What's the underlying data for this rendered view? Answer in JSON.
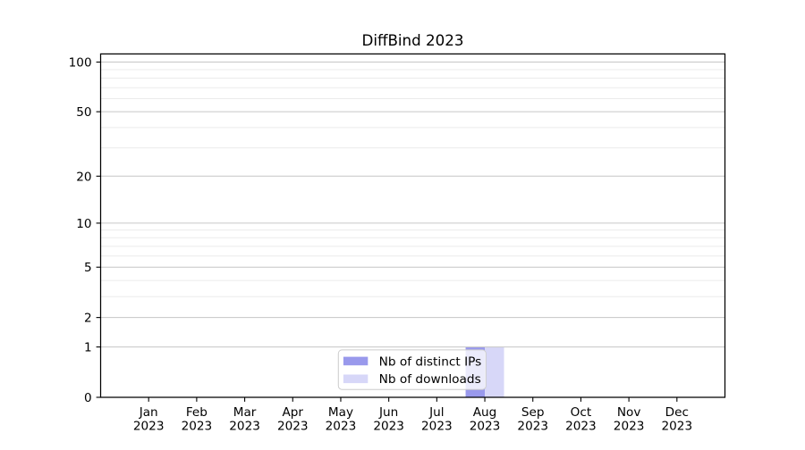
{
  "chart_data": {
    "type": "bar",
    "title": "DiffBind 2023",
    "year": "2023",
    "categories": [
      "Jan",
      "Feb",
      "Mar",
      "Apr",
      "May",
      "Jun",
      "Jul",
      "Aug",
      "Sep",
      "Oct",
      "Nov",
      "Dec"
    ],
    "series": [
      {
        "name": "Nb of distinct IPs",
        "color": "#9999ec",
        "values": [
          0,
          0,
          0,
          0,
          0,
          0,
          0,
          1,
          0,
          0,
          0,
          0
        ]
      },
      {
        "name": "Nb of downloads",
        "color": "#d7d7f8",
        "values": [
          0,
          0,
          0,
          0,
          0,
          0,
          0,
          1,
          0,
          0,
          0,
          0
        ]
      }
    ],
    "xlabel": "",
    "ylabel": "",
    "yscale": "log1p",
    "ylim": [
      0,
      112
    ],
    "y_major_ticks": [
      0,
      1,
      2,
      5,
      10,
      20,
      50,
      100
    ],
    "y_minor_ticks": [
      3,
      4,
      6,
      7,
      8,
      9,
      30,
      40,
      60,
      70,
      80,
      90
    ],
    "bar_width_fraction": 0.4,
    "legend": {
      "position": "lower center"
    },
    "grid": {
      "horizontal": true,
      "vertical": false
    },
    "colors": {
      "background": "#ffffff",
      "grid_major": "#c6c6c6",
      "grid_minor": "#ebebeb",
      "axis": "#000000",
      "text": "#000000",
      "legend_border": "#cccccc",
      "legend_background": "#ffffff"
    }
  }
}
